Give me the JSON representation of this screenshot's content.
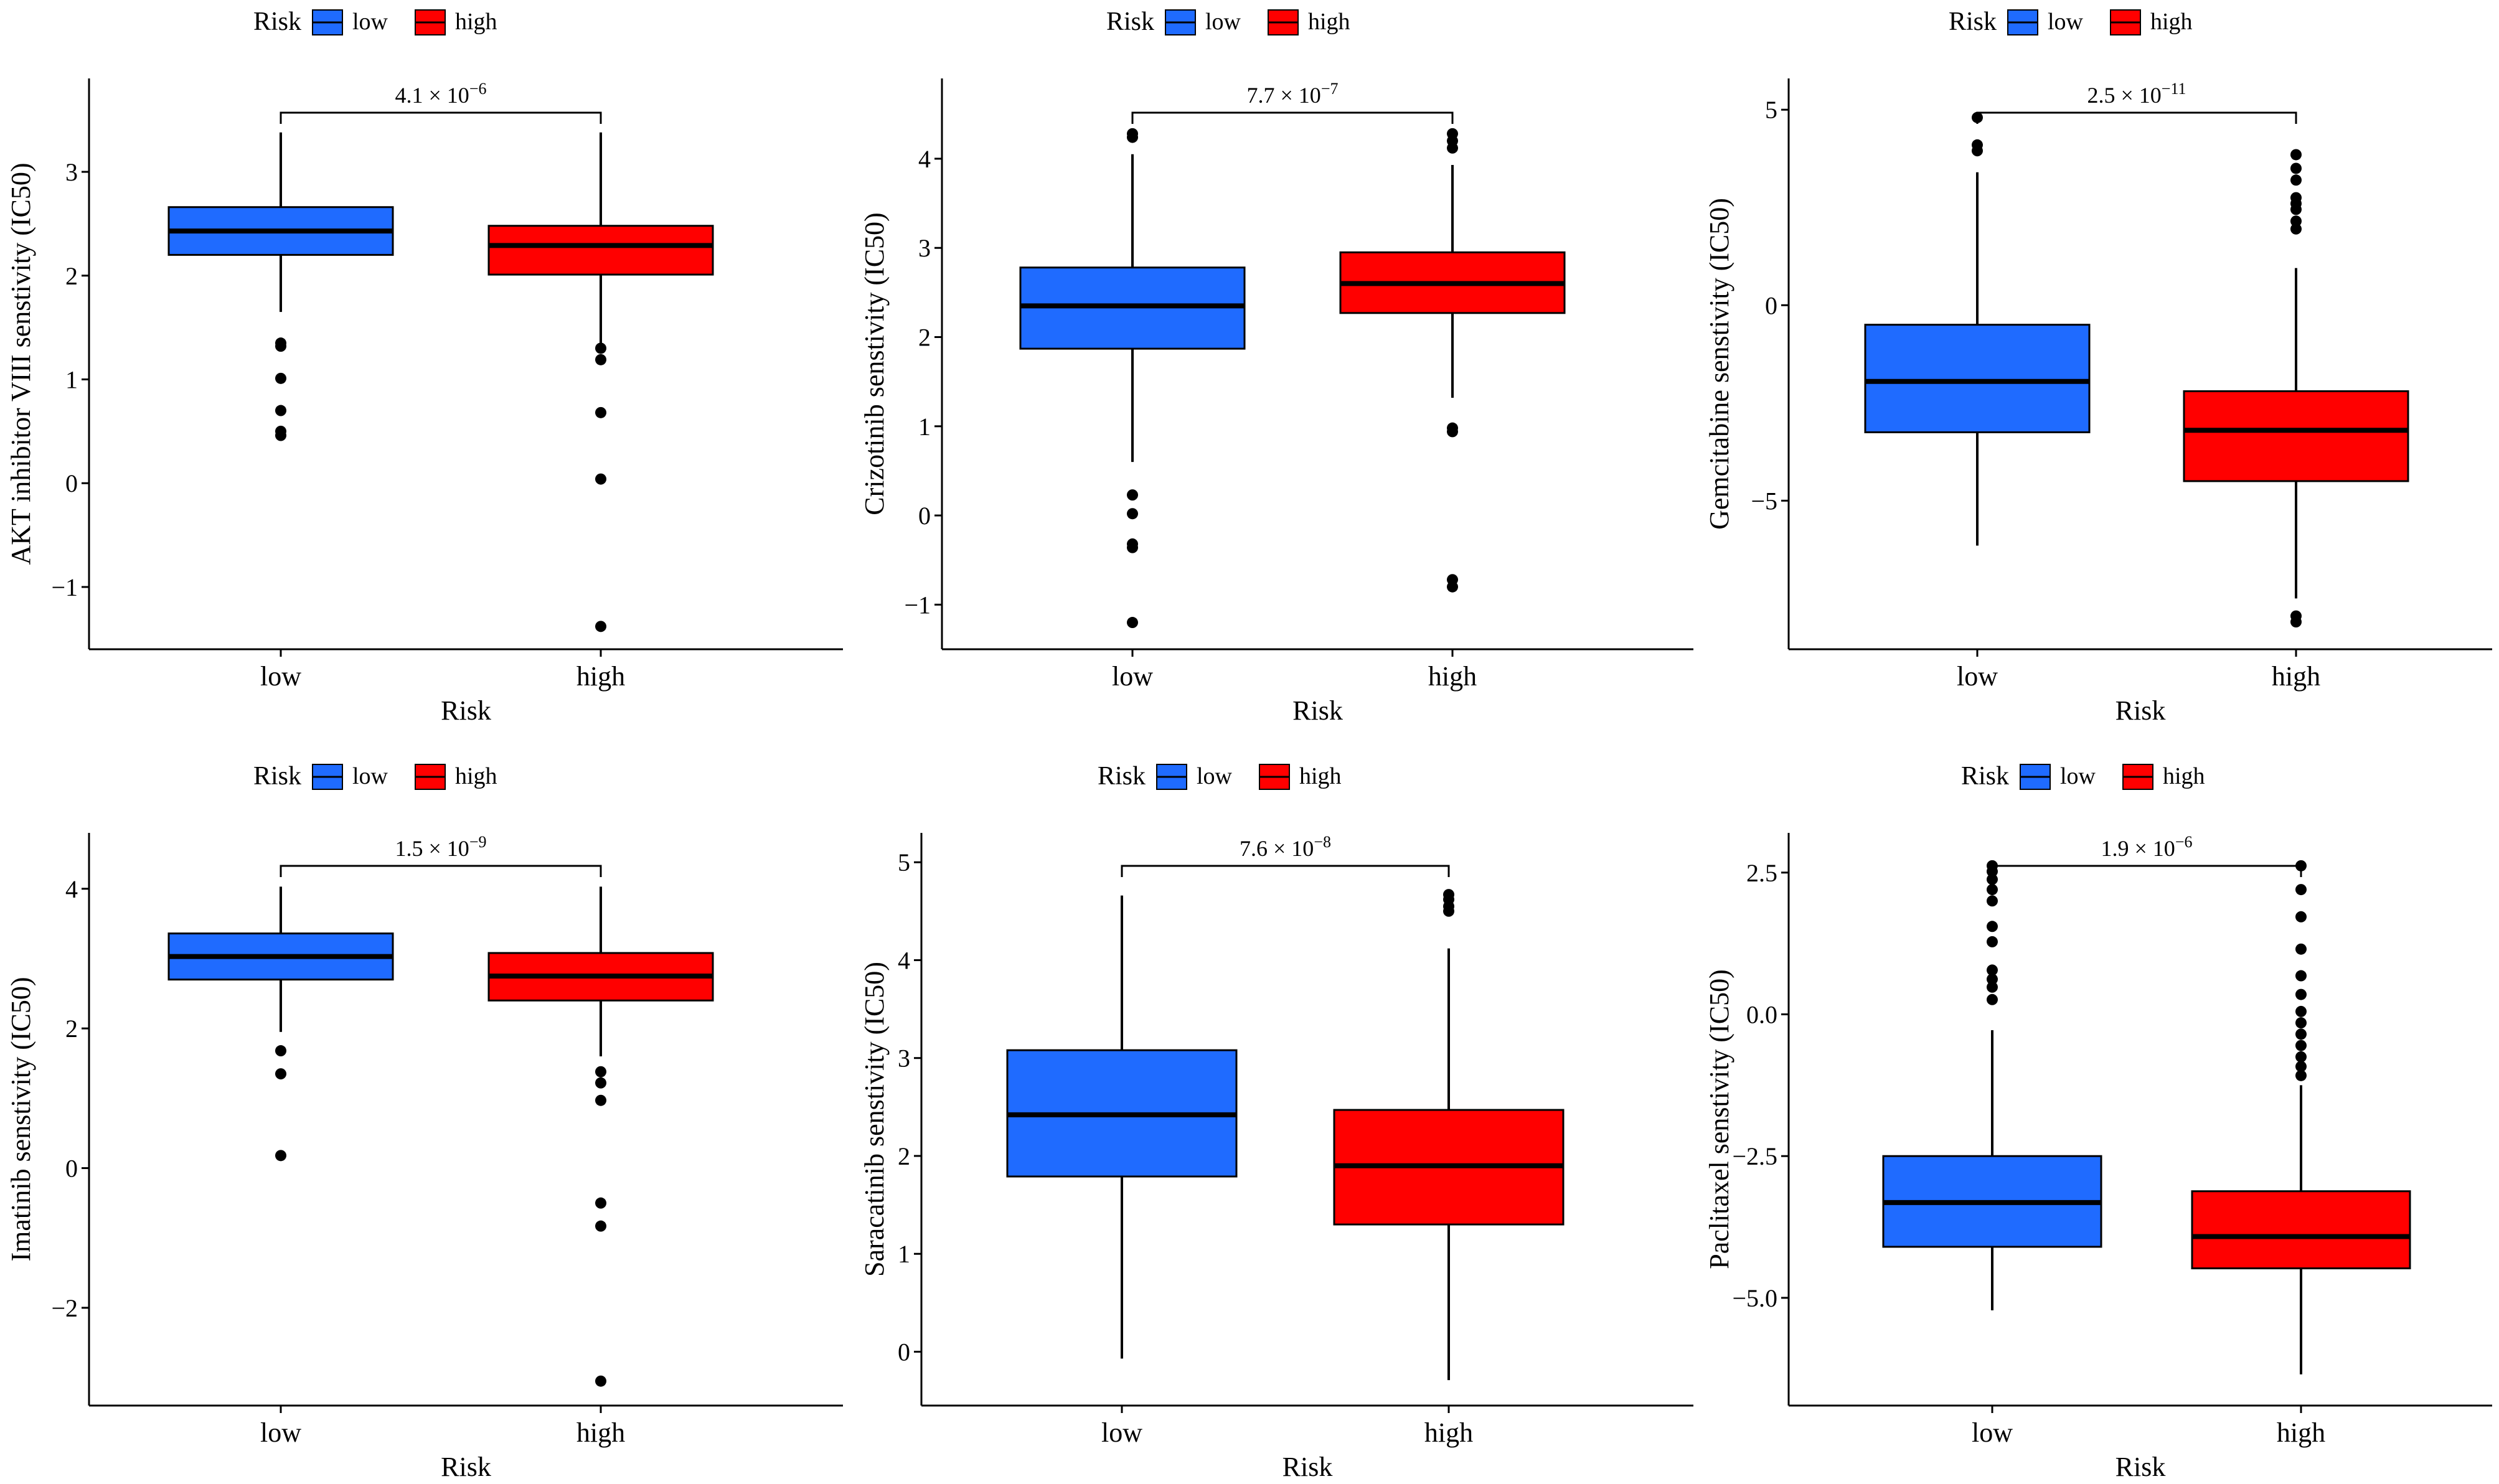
{
  "chart_data": [
    {
      "type": "box",
      "xlabel": "Risk",
      "ylabel": "AKT inhibitor VIII senstivity (IC50)",
      "categories": [
        "low",
        "high"
      ],
      "legend": {
        "title": "Risk",
        "entries": [
          "low",
          "high"
        ],
        "position": "top"
      },
      "colors": [
        "#1f6bff",
        "#ff0000"
      ],
      "ylim": [
        -1.6,
        3.9
      ],
      "yticks": [
        -1,
        0,
        1,
        2,
        3
      ],
      "ytick_labels": [
        "−1",
        "0",
        "1",
        "2",
        "3"
      ],
      "pvalue": {
        "base": "4.1",
        "exp": "−6"
      },
      "boxes": [
        {
          "category": "low",
          "q1": 2.2,
          "median": 2.43,
          "q3": 2.66,
          "whisker_low": 1.65,
          "whisker_high": 3.38,
          "outliers": [
            1.35,
            1.32,
            1.01,
            0.7,
            0.5,
            0.46
          ]
        },
        {
          "category": "high",
          "q1": 2.01,
          "median": 2.29,
          "q3": 2.48,
          "whisker_low": 1.35,
          "whisker_high": 3.38,
          "outliers": [
            1.3,
            1.19,
            0.68,
            0.04,
            -1.38
          ]
        }
      ]
    },
    {
      "type": "box",
      "xlabel": "Risk",
      "ylabel": "Crizotinib senstivity (IC50)",
      "categories": [
        "low",
        "high"
      ],
      "legend": {
        "title": "Risk",
        "entries": [
          "low",
          "high"
        ],
        "position": "top"
      },
      "colors": [
        "#1f6bff",
        "#ff0000"
      ],
      "ylim": [
        -1.5,
        4.9
      ],
      "yticks": [
        -1,
        0,
        1,
        2,
        3,
        4
      ],
      "ytick_labels": [
        "−1",
        "0",
        "1",
        "2",
        "3",
        "4"
      ],
      "pvalue": {
        "base": "7.7",
        "exp": "−7"
      },
      "boxes": [
        {
          "category": "low",
          "q1": 1.87,
          "median": 2.35,
          "q3": 2.78,
          "whisker_low": 0.6,
          "whisker_high": 4.05,
          "outliers": [
            4.28,
            4.24,
            0.23,
            0.02,
            -0.32,
            -0.36,
            -1.2
          ]
        },
        {
          "category": "high",
          "q1": 2.27,
          "median": 2.6,
          "q3": 2.95,
          "whisker_low": 1.32,
          "whisker_high": 3.93,
          "outliers": [
            4.28,
            4.2,
            4.12,
            0.98,
            0.94,
            -0.72,
            -0.8
          ]
        }
      ]
    },
    {
      "type": "box",
      "xlabel": "Risk",
      "ylabel": "Gemcitabine senstivity (IC50)",
      "categories": [
        "low",
        "high"
      ],
      "legend": {
        "title": "Risk",
        "entries": [
          "low",
          "high"
        ],
        "position": "top"
      },
      "colors": [
        "#1f6bff",
        "#ff0000"
      ],
      "ylim": [
        -8.8,
        5.8
      ],
      "yticks": [
        -5,
        0,
        5
      ],
      "ytick_labels": [
        "−5",
        "0",
        "5"
      ],
      "pvalue": {
        "base": "2.5",
        "exp": "−11"
      },
      "boxes": [
        {
          "category": "low",
          "q1": -3.25,
          "median": -1.95,
          "q3": -0.5,
          "whisker_low": -6.15,
          "whisker_high": 3.4,
          "outliers": [
            4.8,
            4.1,
            3.95
          ]
        },
        {
          "category": "high",
          "q1": -4.5,
          "median": -3.2,
          "q3": -2.2,
          "whisker_low": -7.5,
          "whisker_high": 0.95,
          "outliers": [
            3.85,
            3.5,
            3.2,
            2.75,
            2.6,
            2.45,
            2.15,
            1.95,
            -7.95,
            -8.1
          ]
        }
      ]
    },
    {
      "type": "box",
      "xlabel": "Risk",
      "ylabel": "Imatinib senstivity (IC50)",
      "categories": [
        "low",
        "high"
      ],
      "legend": {
        "title": "Risk",
        "entries": [
          "low",
          "high"
        ],
        "position": "top"
      },
      "colors": [
        "#1f6bff",
        "#ff0000"
      ],
      "ylim": [
        -3.4,
        4.8
      ],
      "yticks": [
        -2,
        0,
        2,
        4
      ],
      "ytick_labels": [
        "−2",
        "0",
        "2",
        "4"
      ],
      "pvalue": {
        "base": "1.5",
        "exp": "−9"
      },
      "boxes": [
        {
          "category": "low",
          "q1": 2.7,
          "median": 3.03,
          "q3": 3.36,
          "whisker_low": 1.95,
          "whisker_high": 4.03,
          "outliers": [
            1.68,
            1.35,
            0.18
          ]
        },
        {
          "category": "high",
          "q1": 2.4,
          "median": 2.75,
          "q3": 3.08,
          "whisker_low": 1.6,
          "whisker_high": 4.03,
          "outliers": [
            1.38,
            1.22,
            0.97,
            -0.5,
            -0.83,
            -3.05
          ]
        }
      ]
    },
    {
      "type": "box",
      "xlabel": "Risk",
      "ylabel": "Saracatinib senstivity (IC50)",
      "categories": [
        "low",
        "high"
      ],
      "legend": {
        "title": "Risk",
        "entries": [
          "low",
          "high"
        ],
        "position": "top"
      },
      "colors": [
        "#1f6bff",
        "#ff0000"
      ],
      "ylim": [
        -0.55,
        5.3
      ],
      "yticks": [
        0,
        1,
        2,
        3,
        4,
        5
      ],
      "ytick_labels": [
        "0",
        "1",
        "2",
        "3",
        "4",
        "5"
      ],
      "pvalue": {
        "base": "7.6",
        "exp": "−8"
      },
      "boxes": [
        {
          "category": "low",
          "q1": 1.79,
          "median": 2.42,
          "q3": 3.08,
          "whisker_low": -0.07,
          "whisker_high": 4.66,
          "outliers": []
        },
        {
          "category": "high",
          "q1": 1.3,
          "median": 1.9,
          "q3": 2.47,
          "whisker_low": -0.29,
          "whisker_high": 4.12,
          "outliers": [
            4.67,
            4.62,
            4.55,
            4.5
          ]
        }
      ]
    },
    {
      "type": "box",
      "xlabel": "Risk",
      "ylabel": "Paclitaxel senstivity (IC50)",
      "categories": [
        "low",
        "high"
      ],
      "legend": {
        "title": "Risk",
        "entries": [
          "low",
          "high"
        ],
        "position": "top"
      },
      "colors": [
        "#1f6bff",
        "#ff0000"
      ],
      "ylim": [
        -6.9,
        3.2
      ],
      "yticks": [
        -5,
        -2.5,
        0,
        2.5
      ],
      "ytick_labels": [
        "−5.0",
        "−2.5",
        "0.0",
        "2.5"
      ],
      "pvalue": {
        "base": "1.9",
        "exp": "−6"
      },
      "boxes": [
        {
          "category": "low",
          "q1": -4.1,
          "median": -3.32,
          "q3": -2.5,
          "whisker_low": -5.22,
          "whisker_high": -0.28,
          "outliers": [
            2.62,
            2.52,
            2.38,
            2.2,
            2.0,
            1.55,
            1.28,
            0.78,
            0.62,
            0.48,
            0.26
          ]
        },
        {
          "category": "high",
          "q1": -4.48,
          "median": -3.92,
          "q3": -3.12,
          "whisker_low": -6.35,
          "whisker_high": -1.25,
          "outliers": [
            2.62,
            2.2,
            1.72,
            1.15,
            0.68,
            0.35,
            0.05,
            -0.15,
            -0.35,
            -0.55,
            -0.75,
            -0.92,
            -1.08
          ]
        }
      ]
    }
  ]
}
